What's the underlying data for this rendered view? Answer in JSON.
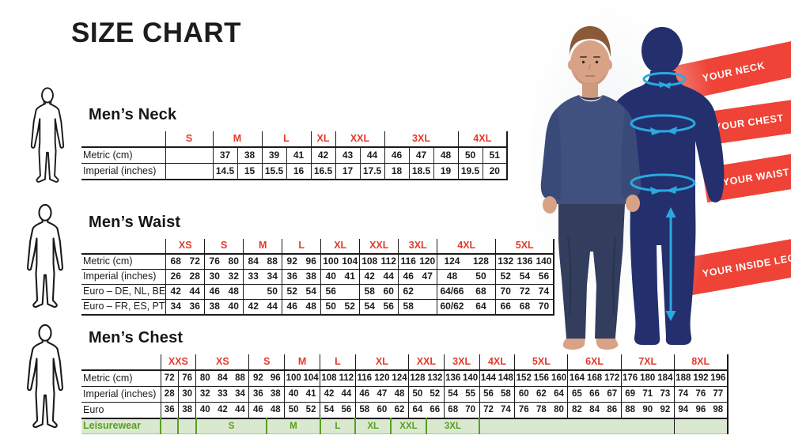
{
  "title": "SIZE CHART",
  "colors": {
    "accent_red": "#e43a2b",
    "banner_red": "#ee4336",
    "leisure_green_text": "#57a01e",
    "leisure_green_bg": "#dbe8d0",
    "arrow_blue": "#2aa9e0",
    "silhouette_navy": "#242f6d",
    "table_line": "#1b1b1b"
  },
  "banners": [
    {
      "label": "YOUR NECK"
    },
    {
      "label": "YOUR CHEST"
    },
    {
      "label": "YOUR WAIST"
    },
    {
      "label": "YOUR INSIDE LEG"
    }
  ],
  "icons": [
    {
      "name": "body-neck-icon",
      "highlight": "neck"
    },
    {
      "name": "body-waist-icon",
      "highlight": "waist"
    },
    {
      "name": "body-chest-icon",
      "highlight": "chest"
    }
  ],
  "sections": [
    {
      "id": "neck",
      "heading": "Men’s Neck",
      "sub": "all",
      "groups": [
        {
          "size": "S",
          "cols": 1
        },
        {
          "size": "M",
          "cols": 2
        },
        {
          "size": "L",
          "cols": 2
        },
        {
          "size": "XL",
          "cols": 1
        },
        {
          "size": "XXL",
          "cols": 2
        },
        {
          "size": "3XL",
          "cols": 3
        },
        {
          "size": "4XL",
          "cols": 2
        }
      ],
      "rows": [
        {
          "label": "Metric (cm)",
          "values": [
            "",
            "37",
            "38",
            "39",
            "41",
            "42",
            "43",
            "44",
            "46",
            "47",
            "48",
            "50",
            "51"
          ]
        },
        {
          "label": "Imperial (inches)",
          "values": [
            "",
            "14.5",
            "15",
            "15.5",
            "16",
            "16.5",
            "17",
            "17.5",
            "18",
            "18.5",
            "19",
            "19.5",
            "20"
          ]
        }
      ]
    },
    {
      "id": "waist",
      "heading": "Men’s Waist",
      "sub": "none",
      "groups": [
        {
          "size": "XS",
          "cols": 2
        },
        {
          "size": "S",
          "cols": 2
        },
        {
          "size": "M",
          "cols": 2
        },
        {
          "size": "L",
          "cols": 2
        },
        {
          "size": "XL",
          "cols": 2
        },
        {
          "size": "XXL",
          "cols": 2
        },
        {
          "size": "3XL",
          "cols": 2
        },
        {
          "size": "4XL",
          "cols": 2
        },
        {
          "size": "5XL",
          "cols": 3
        }
      ],
      "rows": [
        {
          "label": "Metric (cm)",
          "values": [
            "68",
            "72",
            "76",
            "80",
            "84",
            "88",
            "92",
            "96",
            "100",
            "104",
            "108",
            "112",
            "116",
            "120",
            "124",
            "128",
            "132",
            "136",
            "140"
          ]
        },
        {
          "label": "Imperial (inches)",
          "values": [
            "26",
            "28",
            "30",
            "32",
            "33",
            "34",
            "36",
            "38",
            "40",
            "41",
            "42",
            "44",
            "46",
            "47",
            "48",
            "50",
            "52",
            "54",
            "56"
          ]
        },
        {
          "label": "Euro – DE, NL, BE",
          "values": [
            "42",
            "44",
            "46",
            "48",
            "",
            "50",
            "52",
            "54",
            "56",
            "",
            "58",
            "60",
            "62",
            "",
            "64/66",
            "68",
            "70",
            "72",
            "74"
          ]
        },
        {
          "label": "Euro – FR, ES, PT",
          "values": [
            "34",
            "36",
            "38",
            "40",
            "42",
            "44",
            "46",
            "48",
            "50",
            "52",
            "54",
            "56",
            "58",
            "",
            "60/62",
            "64",
            "66",
            "68",
            "70"
          ]
        }
      ]
    },
    {
      "id": "chest",
      "heading": "Men’s Chest",
      "sub": [
        1
      ],
      "groups": [
        {
          "size": "XXS",
          "cols": 2
        },
        {
          "size": "XS",
          "cols": 3
        },
        {
          "size": "S",
          "cols": 2
        },
        {
          "size": "M",
          "cols": 2
        },
        {
          "size": "L",
          "cols": 2
        },
        {
          "size": "XL",
          "cols": 3
        },
        {
          "size": "XXL",
          "cols": 2
        },
        {
          "size": "3XL",
          "cols": 2
        },
        {
          "size": "4XL",
          "cols": 2
        },
        {
          "size": "5XL",
          "cols": 3
        },
        {
          "size": "6XL",
          "cols": 3
        },
        {
          "size": "7XL",
          "cols": 3
        },
        {
          "size": "8XL",
          "cols": 3
        }
      ],
      "rows": [
        {
          "label": "Metric (cm)",
          "values": [
            "72",
            "76",
            "80",
            "84",
            "88",
            "92",
            "96",
            "100",
            "104",
            "108",
            "112",
            "116",
            "120",
            "124",
            "128",
            "132",
            "136",
            "140",
            "144",
            "148",
            "152",
            "156",
            "160",
            "164",
            "168",
            "172",
            "176",
            "180",
            "184",
            "188",
            "192",
            "196"
          ]
        },
        {
          "label": "Imperial (inches)",
          "values": [
            "28",
            "30",
            "32",
            "33",
            "34",
            "36",
            "38",
            "40",
            "41",
            "42",
            "44",
            "46",
            "47",
            "48",
            "50",
            "52",
            "54",
            "55",
            "56",
            "58",
            "60",
            "62",
            "64",
            "65",
            "66",
            "67",
            "69",
            "71",
            "73",
            "74",
            "76",
            "77"
          ]
        },
        {
          "label": "Euro",
          "values": [
            "36",
            "38",
            "40",
            "42",
            "44",
            "46",
            "48",
            "50",
            "52",
            "54",
            "56",
            "58",
            "60",
            "62",
            "64",
            "66",
            "68",
            "70",
            "72",
            "74",
            "76",
            "78",
            "80",
            "82",
            "84",
            "86",
            "88",
            "90",
            "92",
            "94",
            "96",
            "98"
          ]
        }
      ],
      "leisure": {
        "label": "Leisurewear",
        "cells": [
          {
            "text": "",
            "span": 1
          },
          {
            "text": "",
            "span": 1
          },
          {
            "text": "S",
            "span": 4
          },
          {
            "text": "M",
            "span": 3
          },
          {
            "text": "L",
            "span": 2
          },
          {
            "text": "XL",
            "span": 2
          },
          {
            "text": "XXL",
            "span": 2
          },
          {
            "text": "3XL",
            "span": 3
          },
          {
            "text": "",
            "span": 11
          },
          {
            "text": "",
            "span": 3,
            "black": true
          }
        ]
      }
    }
  ]
}
